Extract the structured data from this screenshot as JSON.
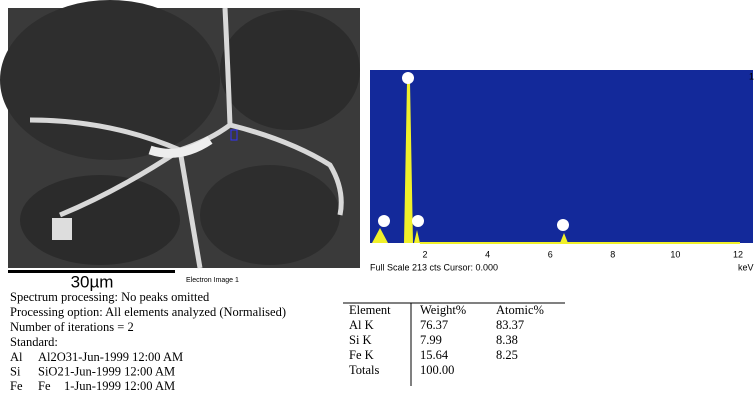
{
  "image": {
    "scale_bar": "30µm",
    "caption": "Electron Image 1"
  },
  "spectrum": {
    "marker": "1",
    "xticks": [
      "2",
      "4",
      "6",
      "8",
      "10",
      "12"
    ],
    "unit": "keV",
    "status": "Full Scale 213 cts Cursor: 0.000"
  },
  "processing": {
    "lines": [
      "Spectrum processing: No peaks omitted",
      "Processing option: All elements analyzed (Normalised)",
      "Number of iterations = 2",
      "Standard:"
    ],
    "standards": [
      [
        "Al",
        "Al2O3",
        "1-Jun-1999 12:00 AM"
      ],
      [
        "Si",
        "SiO2",
        "1-Jun-1999 12:00 AM"
      ],
      [
        "Fe",
        "Fe",
        "1-Jun-1999 12:00 AM"
      ]
    ]
  },
  "table": {
    "headers": [
      "Element",
      "Weight%",
      "Atomic%"
    ],
    "rows": [
      [
        "Al K",
        "76.37",
        "83.37"
      ],
      [
        "Si K",
        "7.99",
        "8.38"
      ],
      [
        "Fe K",
        "15.64",
        "8.25"
      ],
      [
        "Totals",
        "100.00"
      ]
    ]
  }
}
